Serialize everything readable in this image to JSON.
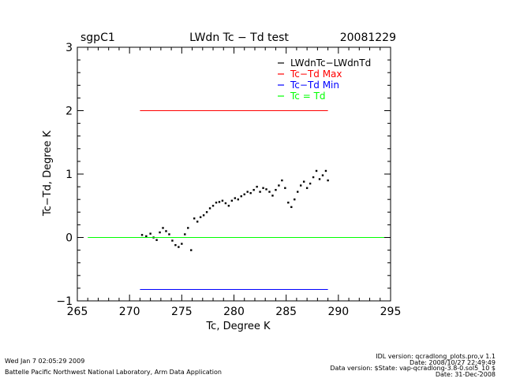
{
  "header": {
    "site": "sgpC1",
    "title": "LWdn Tc − Td test",
    "date": "20081229"
  },
  "footer": {
    "run_time": "Wed Jan  7 02:05:29 2009",
    "lab": "Battelle Pacific Northwest National Laboratory, Arm Data Application",
    "idl_version": "IDL version: qcradlong_plots.pro,v 1.1",
    "idl_date": "Date: 2008/10/27 22:49:49",
    "data_version": "Data version: $State: vap-qcradlong-3.8-0.sol5_10 $",
    "data_date": "Date: 31-Dec-2008"
  },
  "chart_data": {
    "type": "scatter",
    "title": "LWdn Tc − Td test",
    "xlabel": "Tc, Degree K",
    "ylabel": "Tc−Td, Degree K",
    "xlim": [
      265,
      295
    ],
    "ylim": [
      -1,
      3
    ],
    "xticks": [
      "265",
      "270",
      "275",
      "280",
      "285",
      "290",
      "295"
    ],
    "yticks": [
      "−1",
      "0",
      "1",
      "2",
      "3"
    ],
    "legend_position": "top-right",
    "legend": [
      {
        "label": "LWdnTc−LWdnTd",
        "color": "#000000"
      },
      {
        "label": "Tc−Td Max",
        "color": "#ff0000"
      },
      {
        "label": "Tc−Td Min",
        "color": "#0000ff"
      },
      {
        "label": "Tc = Td",
        "color": "#00ff00"
      }
    ],
    "series": [
      {
        "name": "LWdnTc−LWdnTd",
        "color": "#000000",
        "points": [
          [
            271.2,
            0.04
          ],
          [
            271.6,
            0.02
          ],
          [
            272.0,
            0.06
          ],
          [
            272.3,
            0.0
          ],
          [
            272.6,
            -0.04
          ],
          [
            272.9,
            0.08
          ],
          [
            273.2,
            0.15
          ],
          [
            273.5,
            0.1
          ],
          [
            273.8,
            0.05
          ],
          [
            274.1,
            -0.05
          ],
          [
            274.4,
            -0.12
          ],
          [
            274.7,
            -0.15
          ],
          [
            275.0,
            -0.1
          ],
          [
            275.3,
            0.05
          ],
          [
            275.6,
            0.15
          ],
          [
            275.9,
            -0.2
          ],
          [
            276.2,
            0.3
          ],
          [
            276.5,
            0.25
          ],
          [
            276.8,
            0.32
          ],
          [
            277.1,
            0.35
          ],
          [
            277.4,
            0.4
          ],
          [
            277.7,
            0.46
          ],
          [
            278.0,
            0.5
          ],
          [
            278.3,
            0.55
          ],
          [
            278.6,
            0.56
          ],
          [
            278.9,
            0.58
          ],
          [
            279.2,
            0.54
          ],
          [
            279.5,
            0.5
          ],
          [
            279.8,
            0.58
          ],
          [
            280.1,
            0.62
          ],
          [
            280.4,
            0.6
          ],
          [
            280.7,
            0.65
          ],
          [
            281.0,
            0.68
          ],
          [
            281.3,
            0.72
          ],
          [
            281.6,
            0.7
          ],
          [
            281.9,
            0.75
          ],
          [
            282.2,
            0.8
          ],
          [
            282.5,
            0.72
          ],
          [
            282.8,
            0.78
          ],
          [
            283.1,
            0.76
          ],
          [
            283.4,
            0.72
          ],
          [
            283.7,
            0.66
          ],
          [
            284.0,
            0.75
          ],
          [
            284.3,
            0.82
          ],
          [
            284.6,
            0.9
          ],
          [
            284.9,
            0.78
          ],
          [
            285.2,
            0.55
          ],
          [
            285.5,
            0.48
          ],
          [
            285.8,
            0.6
          ],
          [
            286.1,
            0.72
          ],
          [
            286.4,
            0.82
          ],
          [
            286.7,
            0.88
          ],
          [
            287.0,
            0.78
          ],
          [
            287.3,
            0.85
          ],
          [
            287.6,
            0.95
          ],
          [
            287.9,
            1.05
          ],
          [
            288.2,
            0.92
          ],
          [
            288.5,
            0.98
          ],
          [
            288.8,
            1.05
          ],
          [
            289.0,
            0.9
          ]
        ]
      },
      {
        "name": "Tc−Td Max",
        "color": "#ff0000",
        "x": [
          271,
          289
        ],
        "y": [
          2.0,
          2.0
        ]
      },
      {
        "name": "Tc−Td Min",
        "color": "#0000ff",
        "x": [
          271,
          289
        ],
        "y": [
          -0.82,
          -0.82
        ]
      },
      {
        "name": "Tc = Td",
        "color": "#00ff00",
        "x": [
          266,
          294.5
        ],
        "y": [
          0,
          0
        ]
      }
    ]
  }
}
